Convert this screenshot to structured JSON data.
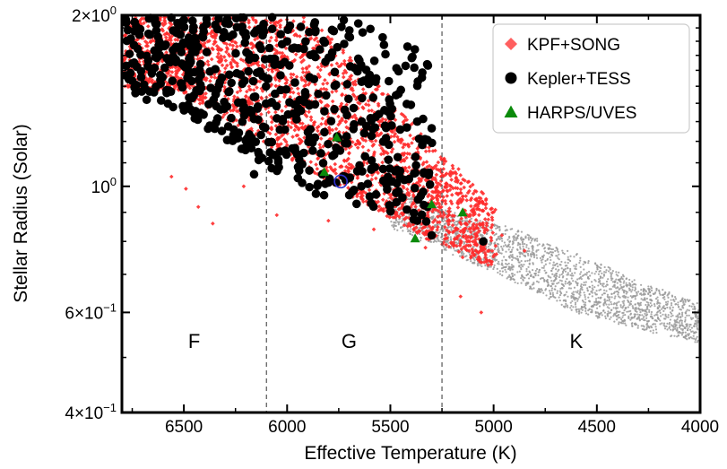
{
  "chart_data": {
    "type": "scatter",
    "xlabel": "Effective Temperature (K)",
    "ylabel": "Stellar Radius (Solar)",
    "xlim": [
      6800,
      4000
    ],
    "ylim": [
      0.4,
      2.0
    ],
    "yscale": "log",
    "x_inverted": true,
    "grid": false,
    "legend_position": "top-right",
    "x_ticks": [
      6500,
      6000,
      5500,
      5000,
      4500,
      4000
    ],
    "y_ticks": [
      {
        "value": 2.0,
        "mantissa": "2",
        "exp": "0"
      },
      {
        "value": 1.0,
        "mantissa": "",
        "exp": "0"
      },
      {
        "value": 0.6,
        "mantissa": "6",
        "exp": "−1"
      },
      {
        "value": 0.4,
        "mantissa": "4",
        "exp": "−1"
      }
    ],
    "x_minor_ticks": [
      6750,
      6250,
      5750,
      5250,
      4750,
      4250
    ],
    "y_minor_ticks": [
      1.9,
      1.8,
      1.7,
      1.6,
      1.5,
      1.4,
      1.3,
      1.2,
      1.1,
      0.9,
      0.8,
      0.7,
      0.5
    ],
    "vlines": [
      6100,
      5250
    ],
    "regions": [
      {
        "label": "F",
        "teff": 6450,
        "radius": 0.52
      },
      {
        "label": "G",
        "teff": 5700,
        "radius": 0.52
      },
      {
        "label": "K",
        "teff": 4600,
        "radius": 0.52
      }
    ],
    "series": [
      {
        "name": "KPF+SONG",
        "color": "#ff2a2a",
        "marker": "diamond",
        "cloud": [
          {
            "t1": 6800,
            "t2": 5000,
            "min": [
              1.5,
              1.45,
              1.25,
              1.07,
              0.92,
              0.8,
              0.72
            ],
            "max": [
              2.0,
              2.0,
              2.0,
              2.0,
              1.55,
              1.18,
              0.92
            ],
            "n": 2600
          }
        ],
        "outliers": [
          [
            6560,
            1.04
          ],
          [
            6490,
            0.99
          ],
          [
            6430,
            0.92
          ],
          [
            6360,
            0.86
          ],
          [
            6210,
            1.0
          ],
          [
            6050,
            0.89
          ],
          [
            5800,
            0.87
          ],
          [
            5580,
            0.84
          ],
          [
            5330,
            0.78
          ],
          [
            5160,
            0.64
          ],
          [
            5060,
            0.6
          ],
          [
            5150,
            0.75
          ],
          [
            4960,
            0.82
          ],
          [
            4850,
            0.77
          ]
        ]
      },
      {
        "name": "Kepler+TESS",
        "color": "#000000",
        "marker": "circle",
        "cloud": [
          {
            "t1": 6800,
            "t2": 5300,
            "min": [
              1.45,
              1.38,
              1.2,
              1.05,
              0.95,
              0.9,
              0.86
            ],
            "max": [
              2.0,
              2.0,
              2.0,
              2.0,
              2.0,
              1.9,
              1.7
            ],
            "n": 560
          }
        ],
        "points": [
          [
            6160,
            1.05
          ],
          [
            6680,
            1.42
          ],
          [
            6040,
            1.08
          ],
          [
            5830,
            1.05
          ],
          [
            5720,
            1.04
          ],
          [
            5640,
            1.0
          ],
          [
            5460,
            0.98
          ],
          [
            5420,
            0.91
          ],
          [
            5370,
            0.87
          ],
          [
            5300,
            0.82
          ],
          [
            5050,
            0.8
          ],
          [
            5320,
            0.92
          ],
          [
            5410,
            1.03
          ],
          [
            5370,
            1.3
          ],
          [
            5490,
            1.02
          ],
          [
            5600,
            0.96
          ]
        ]
      },
      {
        "name": "HARPS/UVES",
        "color": "#0a8a0a",
        "marker": "triangle",
        "points": [
          [
            5820,
            1.06
          ],
          [
            5760,
            1.22
          ],
          [
            5380,
            0.81
          ],
          [
            5300,
            0.93
          ],
          [
            5150,
            0.9
          ]
        ]
      },
      {
        "name": "",
        "color": "#9a9a9a",
        "marker": "dot",
        "cloud": [
          {
            "t1": 5500,
            "t2": 4000,
            "min": [
              0.85,
              0.76,
              0.68,
              0.6,
              0.56,
              0.53
            ],
            "max": [
              1.0,
              0.9,
              0.84,
              0.76,
              0.68,
              0.62
            ],
            "n": 2300
          }
        ]
      },
      {
        "name": "",
        "color": "#3030d0",
        "marker": "open-circle",
        "points": [
          [
            5740,
            1.02
          ]
        ]
      }
    ]
  }
}
